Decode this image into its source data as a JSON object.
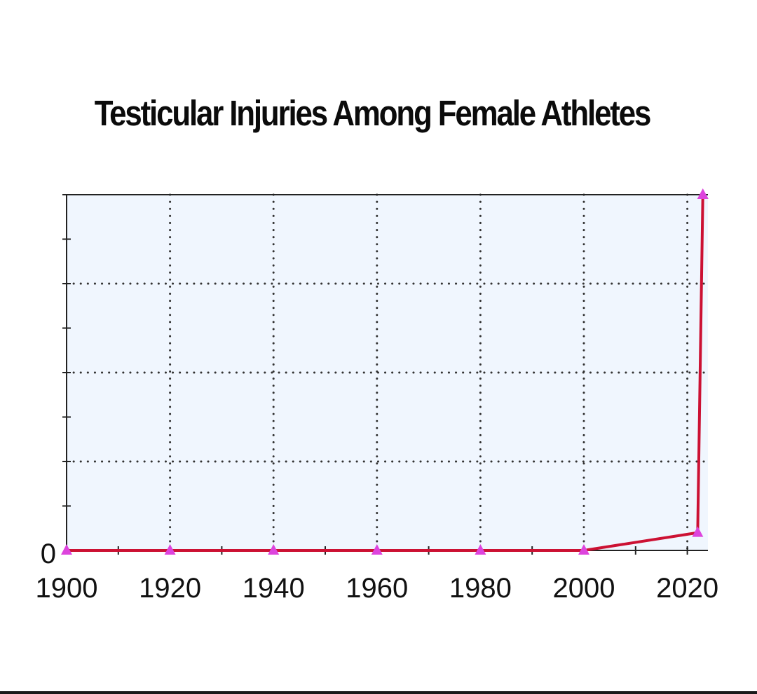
{
  "chart_data": {
    "type": "line",
    "title": "Testicular Injuries Among Female Athletes",
    "xlabel": "",
    "ylabel": "",
    "x_ticks": [
      "1900",
      "1920",
      "1940",
      "1960",
      "1980",
      "2000",
      "2020"
    ],
    "y_ticks": [
      "0"
    ],
    "xlim": [
      1900,
      2022.5
    ],
    "ylim": [
      0,
      1
    ],
    "grid": true,
    "series": [
      {
        "color": "#cc1133",
        "marker_color": "#dd44dd",
        "points": [
          {
            "x": 1900,
            "y": 0
          },
          {
            "x": 1920,
            "y": 0
          },
          {
            "x": 1940,
            "y": 0
          },
          {
            "x": 1960,
            "y": 0
          },
          {
            "x": 1980,
            "y": 0
          },
          {
            "x": 2000,
            "y": 0
          },
          {
            "x": 2022,
            "y": 0.05
          },
          {
            "x": 2023,
            "y": 1
          }
        ]
      }
    ]
  }
}
